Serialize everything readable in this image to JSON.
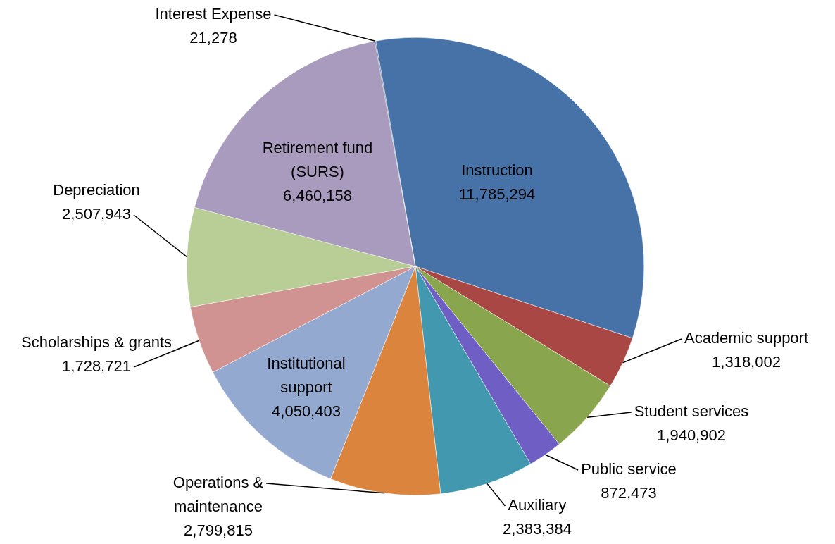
{
  "chart_data": {
    "type": "pie",
    "categories": [
      "Instruction",
      "Academic support",
      "Student services",
      "Public service",
      "Auxiliary",
      "Operations & maintenance",
      "Institutional support",
      "Scholarships & grants",
      "Depreciation",
      "Retirement fund (SURS)",
      "Interest Expense"
    ],
    "values": [
      11785294,
      1318002,
      1940902,
      872473,
      2383384,
      2799815,
      4050403,
      1728721,
      2507943,
      6460158,
      21278
    ],
    "colors": [
      "#4672a8",
      "#a84744",
      "#89a54e",
      "#6f5fc4",
      "#4198af",
      "#db843d",
      "#93a9cf",
      "#d09391",
      "#b9cd96",
      "#a99bbd",
      "#3d5a80"
    ],
    "value_labels": [
      "11,785,294",
      "1,318,002",
      "1,940,902",
      "872,473",
      "2,383,384",
      "2,799,815",
      "4,050,403",
      "1,728,721",
      "2,507,943",
      "6,460,158",
      "21,278"
    ],
    "legend": false
  }
}
